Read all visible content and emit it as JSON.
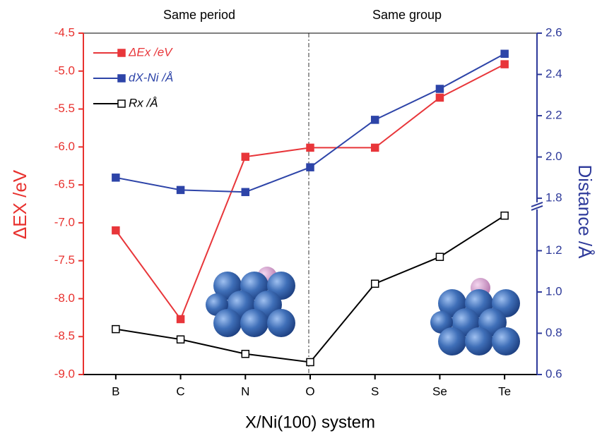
{
  "chart_data": {
    "type": "line",
    "annotations": [
      "Same period",
      "Same group"
    ],
    "xlabel": "X/Ni(100) system",
    "ylabel": "ΔEX /eV",
    "y2label": "Distance /Å",
    "categories": [
      "B",
      "C",
      "N",
      "O",
      "S",
      "Se",
      "Te"
    ],
    "ylim": [
      -9.0,
      -4.5
    ],
    "yticks": [
      {
        "value": -9.0,
        "label": "-9.0"
      },
      -8.5,
      {
        "value": -8.0,
        "label": "-8.0"
      },
      -7.5,
      {
        "value": -7.0,
        "label": "-7.0"
      },
      -6.5,
      {
        "value": -6.0,
        "label": "-6.0"
      },
      -5.5,
      {
        "value": -5.0,
        "label": "-5.0"
      },
      -4.5
    ],
    "y2_segments": [
      {
        "y2lim": [
          0.6,
          1.4
        ],
        "y2ticks": [
          0.6,
          0.8,
          {
            "value": 1.0,
            "label": "1.0"
          },
          1.2
        ]
      },
      {
        "y2lim": [
          1.78,
          2.6
        ],
        "y2ticks": [
          1.8,
          {
            "value": 2.0,
            "label": "2.0"
          },
          2.2,
          2.4,
          2.6
        ]
      }
    ],
    "legend": "upper left",
    "series": [
      {
        "name": "ΔEx /eV",
        "color": "#e8363a",
        "marker": "filled",
        "values": [
          -7.1,
          -8.27,
          -6.13,
          -6.01,
          -6.01,
          -5.35,
          -4.91
        ]
      },
      {
        "name": "dX-Ni /Å",
        "color": "#2d44a8",
        "marker": "filled",
        "axis": "y2",
        "values": [
          1.9,
          1.84,
          1.83,
          1.95,
          2.18,
          2.33,
          2.5
        ]
      },
      {
        "name": "Rx /Å",
        "color": "#000000",
        "marker": "open",
        "axis": "y2",
        "values": [
          0.82,
          0.77,
          0.7,
          0.66,
          1.04,
          1.17,
          1.37
        ]
      }
    ]
  }
}
